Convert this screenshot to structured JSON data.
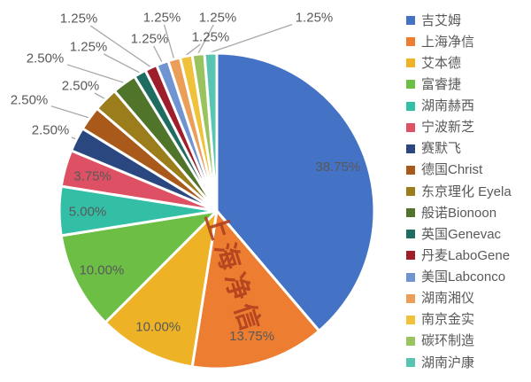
{
  "chart_data": {
    "type": "pie",
    "title": "",
    "legend_position": "right",
    "grid": false,
    "label_color": "#595959",
    "leader_line_color": "#a8a8a8",
    "watermark": {
      "text": "上海净信",
      "color": "#b0411f"
    },
    "series": [
      {
        "name": "吉艾姆",
        "value": 38.75,
        "label": "38.75%",
        "color": "#4472c4"
      },
      {
        "name": "上海净信",
        "value": 13.75,
        "label": "13.75%",
        "color": "#ed7d31"
      },
      {
        "name": "艾本德",
        "value": 10.0,
        "label": "10.00%",
        "color": "#eeb227"
      },
      {
        "name": "富睿捷",
        "value": 10.0,
        "label": "10.00%",
        "color": "#6cbe45"
      },
      {
        "name": "湖南赫西",
        "value": 5.0,
        "label": "5.00%",
        "color": "#32bfa6"
      },
      {
        "name": "宁波新芝",
        "value": 3.75,
        "label": "3.75%",
        "color": "#de5063"
      },
      {
        "name": "赛默飞",
        "value": 2.5,
        "label": "2.50%",
        "color": "#2a4780"
      },
      {
        "name": "德国Christ",
        "value": 2.5,
        "label": "2.50%",
        "color": "#a95a1b"
      },
      {
        "name": "东京理化 Eyela",
        "value": 2.5,
        "label": "2.50%",
        "color": "#9c7d1c"
      },
      {
        "name": "般诺Bionoon",
        "value": 2.5,
        "label": "2.50%",
        "color": "#507429"
      },
      {
        "name": "英国Genevac",
        "value": 1.25,
        "label": "1.25%",
        "color": "#1f6d60"
      },
      {
        "name": "丹麦LaboGene",
        "value": 1.25,
        "label": "1.25%",
        "color": "#9e1f2b"
      },
      {
        "name": "美国Labconco",
        "value": 1.25,
        "label": "1.25%",
        "color": "#7093d1"
      },
      {
        "name": "湖南湘仪",
        "value": 1.25,
        "label": "1.25%",
        "color": "#eb9e58"
      },
      {
        "name": "南京金实",
        "value": 1.25,
        "label": "1.25%",
        "color": "#f0c23b"
      },
      {
        "name": "碳环制造",
        "value": 1.25,
        "label": "1.25%",
        "color": "#9ac35f"
      },
      {
        "name": "湖南沪康",
        "value": 1.25,
        "label": "1.25%",
        "color": "#59c4b1"
      }
    ]
  }
}
